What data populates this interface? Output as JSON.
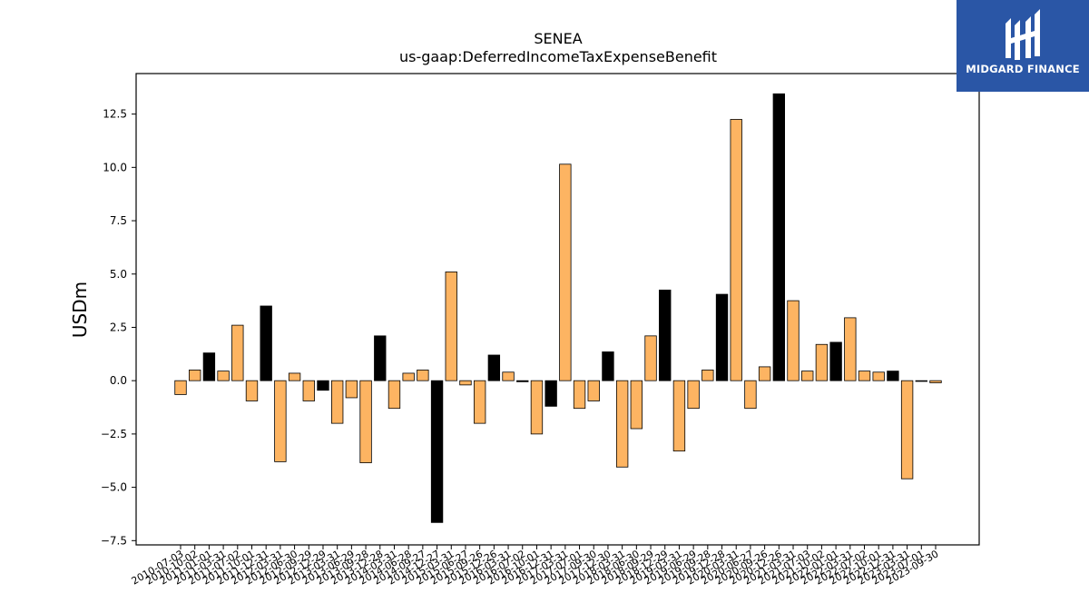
{
  "chart_data": {
    "type": "bar",
    "title": "SENEA",
    "subtitle": "us-gaap:DeferredIncomeTaxExpenseBenefit",
    "ylabel": "USDm",
    "xlabel": "",
    "ylim": [
      -7.7,
      14.4
    ],
    "yticks": [
      -7.5,
      -5.0,
      -2.5,
      0.0,
      2.5,
      5.0,
      7.5,
      10.0,
      12.5
    ],
    "ytick_labels": [
      "−7.5",
      "−5.0",
      "−2.5",
      "0.0",
      "2.5",
      "5.0",
      "7.5",
      "10.0",
      "12.5"
    ],
    "grid": false,
    "legend": "none",
    "colors": {
      "primary": "#fdb462",
      "highlight": "#000000",
      "edge": "#000000"
    },
    "categories": [
      "2010-07-03",
      "2010-10-02",
      "2011-01-01",
      "2011-03-31",
      "2011-07-02",
      "2011-10-01",
      "2011-12-31",
      "2012-03-31",
      "2012-06-30",
      "2012-09-29",
      "2012-12-29",
      "2013-03-31",
      "2013-06-29",
      "2013-09-28",
      "2013-12-28",
      "2014-03-31",
      "2014-06-28",
      "2014-09-27",
      "2014-12-27",
      "2015-03-31",
      "2015-06-27",
      "2015-09-26",
      "2015-12-26",
      "2016-03-31",
      "2016-07-02",
      "2016-10-01",
      "2016-12-31",
      "2017-03-31",
      "2017-07-01",
      "2017-09-30",
      "2017-12-30",
      "2018-03-31",
      "2018-06-30",
      "2018-09-29",
      "2018-12-29",
      "2019-03-31",
      "2019-06-29",
      "2019-09-28",
      "2019-12-28",
      "2020-03-31",
      "2020-06-27",
      "2020-09-26",
      "2020-12-26",
      "2021-03-31",
      "2021-07-03",
      "2021-10-02",
      "2022-01-01",
      "2022-03-31",
      "2022-07-02",
      "2022-10-01",
      "2022-12-31",
      "2023-03-31",
      "2023-07-01",
      "2023-09-30"
    ],
    "values": [
      -0.65,
      0.5,
      1.3,
      0.45,
      2.6,
      -0.95,
      3.5,
      -3.8,
      0.35,
      -0.95,
      -0.45,
      -2.0,
      -0.8,
      -3.85,
      2.1,
      -1.3,
      0.35,
      0.5,
      -6.65,
      5.1,
      -0.2,
      -2.0,
      1.2,
      0.4,
      -0.05,
      -2.5,
      -1.2,
      10.15,
      -1.3,
      -0.95,
      1.35,
      -4.05,
      -2.25,
      2.1,
      4.25,
      -3.3,
      -1.3,
      0.5,
      4.05,
      12.25,
      -1.3,
      0.65,
      13.45,
      3.75,
      0.45,
      1.7,
      1.8,
      2.95,
      0.45,
      0.4,
      0.45,
      -4.6,
      0.0,
      -0.1
    ],
    "highlight": [
      false,
      false,
      true,
      false,
      false,
      false,
      true,
      false,
      false,
      false,
      true,
      false,
      false,
      false,
      true,
      false,
      false,
      false,
      true,
      false,
      false,
      false,
      true,
      false,
      true,
      false,
      true,
      false,
      false,
      false,
      true,
      false,
      false,
      false,
      true,
      false,
      false,
      false,
      true,
      false,
      false,
      false,
      true,
      false,
      false,
      false,
      true,
      false,
      false,
      false,
      true,
      false,
      false,
      false
    ]
  },
  "logo": {
    "text": "MIDGARD FINANCE",
    "background": "#2a56a6",
    "icon": "midgard-logo-icon"
  }
}
